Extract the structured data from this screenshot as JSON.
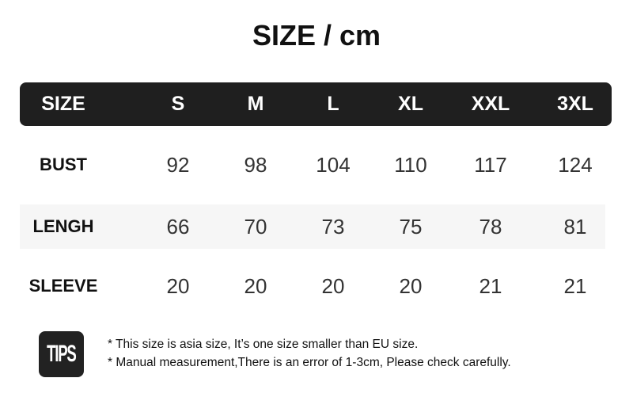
{
  "title": "SIZE / cm",
  "table": {
    "headers": [
      "SIZE",
      "S",
      "M",
      "L",
      "XL",
      "XXL",
      "3XL"
    ],
    "rows": [
      {
        "label": "BUST",
        "values": [
          "92",
          "98",
          "104",
          "110",
          "117",
          "124"
        ]
      },
      {
        "label": "LENGH",
        "values": [
          "66",
          "70",
          "73",
          "75",
          "78",
          "81"
        ]
      },
      {
        "label": "SLEEVE",
        "values": [
          "20",
          "20",
          "20",
          "20",
          "21",
          "21"
        ]
      }
    ]
  },
  "tips": {
    "badge": "TIPS",
    "notes": [
      "* This size is asia size, It’s one size smaller than EU size.",
      "* Manual measurement,There is an error of 1-3cm, Please check carefully."
    ]
  }
}
